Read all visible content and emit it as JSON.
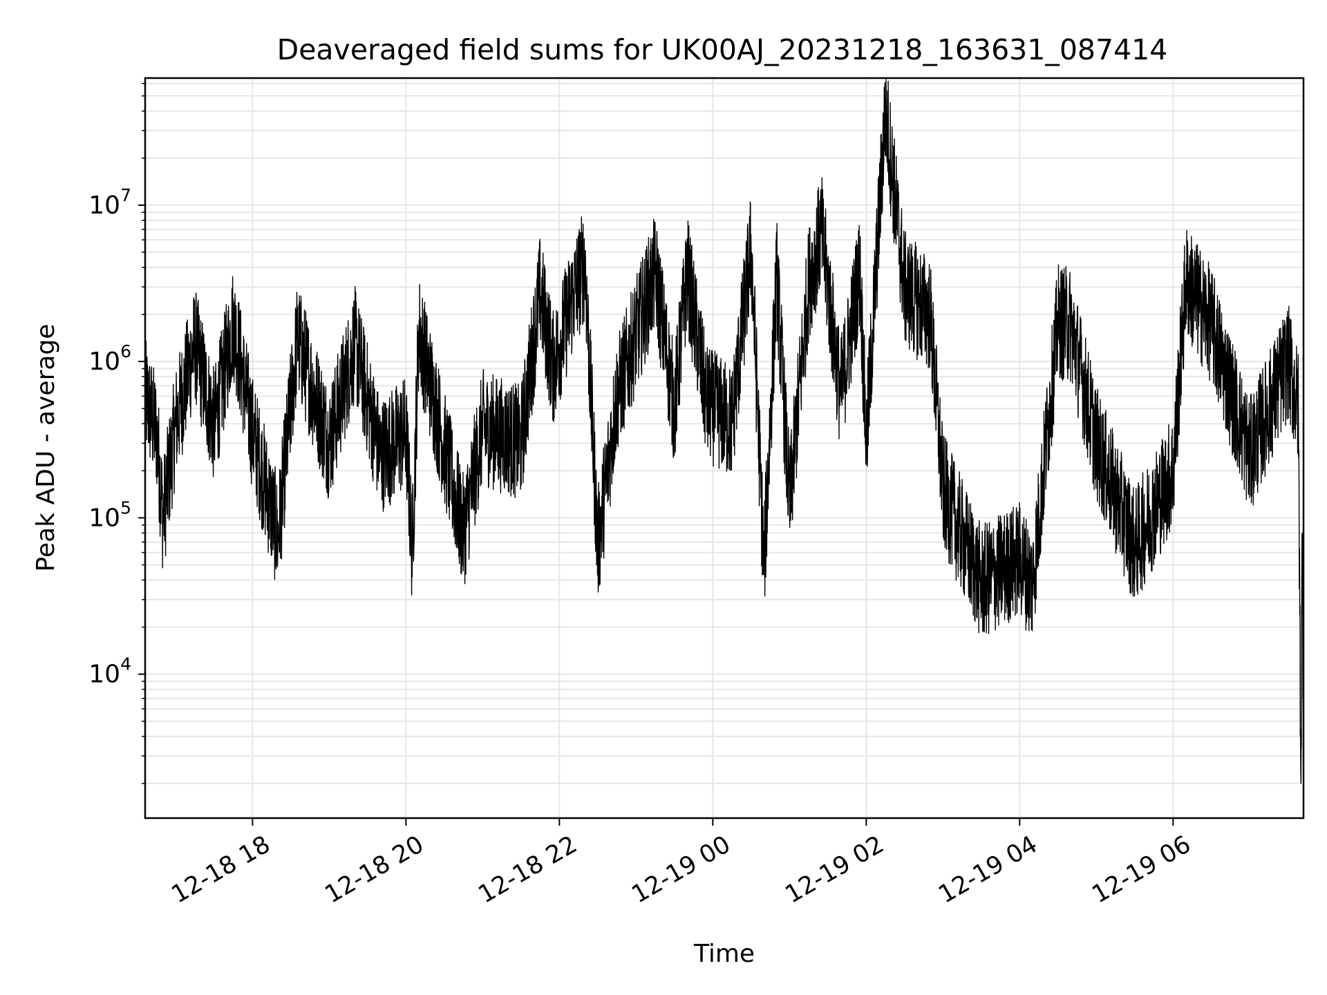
{
  "chart_data": {
    "type": "line",
    "title": "Deaveraged field sums for UK00AJ_20231218_163631_087414",
    "xlabel": "Time",
    "ylabel": "Peak ADU - average",
    "x_range": [
      "2023-12-18 16:36",
      "2023-12-19 07:42"
    ],
    "ylim": [
      1200,
      65000000
    ],
    "y_scale": "log",
    "grid": true,
    "line_color": "#000000",
    "grid_color": "#e6e6e6",
    "x_ticks": [
      {
        "value": "2023-12-18 18:00",
        "label": "12-18 18"
      },
      {
        "value": "2023-12-18 20:00",
        "label": "12-18 20"
      },
      {
        "value": "2023-12-18 22:00",
        "label": "12-18 22"
      },
      {
        "value": "2023-12-19 00:00",
        "label": "12-19 00"
      },
      {
        "value": "2023-12-19 02:00",
        "label": "12-19 02"
      },
      {
        "value": "2023-12-19 04:00",
        "label": "12-19 04"
      },
      {
        "value": "2023-12-19 06:00",
        "label": "12-19 06"
      }
    ],
    "y_ticks": [
      {
        "value": 10000,
        "base": "10",
        "exp": "4"
      },
      {
        "value": 100000,
        "base": "10",
        "exp": "5"
      },
      {
        "value": 1000000,
        "base": "10",
        "exp": "6"
      },
      {
        "value": 10000000,
        "base": "10",
        "exp": "7"
      }
    ],
    "series": [
      {
        "values": [
          [
            "2023-12-18 16:36",
            600000
          ],
          [
            "2023-12-18 16:45",
            350000
          ],
          [
            "2023-12-18 16:50",
            100000
          ],
          [
            "2023-12-18 17:00",
            400000
          ],
          [
            "2023-12-18 17:15",
            1300000
          ],
          [
            "2023-12-18 17:30",
            380000
          ],
          [
            "2023-12-18 17:45",
            1800000
          ],
          [
            "2023-12-18 18:00",
            350000
          ],
          [
            "2023-12-18 18:20",
            75000
          ],
          [
            "2023-12-18 18:35",
            1400000
          ],
          [
            "2023-12-18 19:00",
            300000
          ],
          [
            "2023-12-18 19:20",
            1300000
          ],
          [
            "2023-12-18 19:40",
            250000
          ],
          [
            "2023-12-18 20:00",
            350000
          ],
          [
            "2023-12-18 20:05",
            60000
          ],
          [
            "2023-12-18 20:10",
            1600000
          ],
          [
            "2023-12-18 20:30",
            280000
          ],
          [
            "2023-12-18 20:45",
            80000
          ],
          [
            "2023-12-18 21:00",
            380000
          ],
          [
            "2023-12-18 21:30",
            300000
          ],
          [
            "2023-12-18 21:45",
            2800000
          ],
          [
            "2023-12-18 21:55",
            900000
          ],
          [
            "2023-12-18 22:10",
            2500000
          ],
          [
            "2023-12-18 22:20",
            4300000
          ],
          [
            "2023-12-18 22:30",
            65000
          ],
          [
            "2023-12-18 22:45",
            600000
          ],
          [
            "2023-12-18 23:15",
            3700000
          ],
          [
            "2023-12-18 23:30",
            500000
          ],
          [
            "2023-12-18 23:40",
            3800000
          ],
          [
            "2023-12-18 23:55",
            550000
          ],
          [
            "2023-12-19 00:15",
            400000
          ],
          [
            "2023-12-19 00:30",
            5400000
          ],
          [
            "2023-12-19 00:40",
            48000
          ],
          [
            "2023-12-19 00:50",
            3600000
          ],
          [
            "2023-12-19 01:00",
            120000
          ],
          [
            "2023-12-19 01:15",
            3200000
          ],
          [
            "2023-12-19 01:25",
            6800000
          ],
          [
            "2023-12-19 01:40",
            600000
          ],
          [
            "2023-12-19 01:55",
            3900000
          ],
          [
            "2023-12-19 02:00",
            300000
          ],
          [
            "2023-12-19 02:15",
            42000000
          ],
          [
            "2023-12-19 02:30",
            2900000
          ],
          [
            "2023-12-19 02:50",
            2000000
          ],
          [
            "2023-12-19 03:00",
            150000
          ],
          [
            "2023-12-19 03:30",
            38000
          ],
          [
            "2023-12-19 04:00",
            55000
          ],
          [
            "2023-12-19 04:10",
            37000
          ],
          [
            "2023-12-19 04:30",
            1800000
          ],
          [
            "2023-12-19 04:40",
            1700000
          ],
          [
            "2023-12-19 05:00",
            300000
          ],
          [
            "2023-12-19 05:30",
            65000
          ],
          [
            "2023-12-19 06:00",
            200000
          ],
          [
            "2023-12-19 06:10",
            3300000
          ],
          [
            "2023-12-19 06:30",
            1700000
          ],
          [
            "2023-12-19 07:00",
            250000
          ],
          [
            "2023-12-19 07:30",
            1000000
          ],
          [
            "2023-12-19 07:38",
            500000
          ],
          [
            "2023-12-19 07:40",
            2000
          ],
          [
            "2023-12-19 07:41",
            80000
          ],
          [
            "2023-12-19 07:42",
            3500
          ]
        ]
      }
    ]
  }
}
